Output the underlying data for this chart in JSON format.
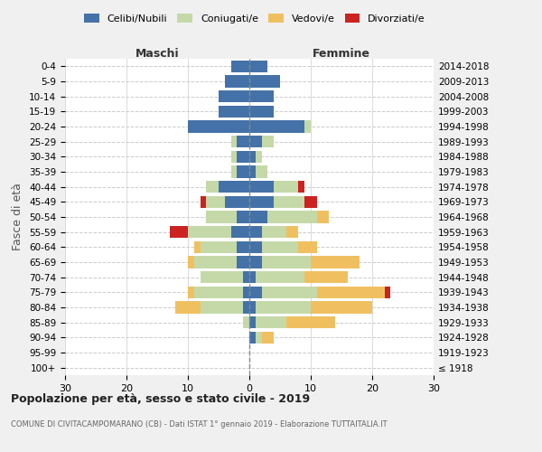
{
  "age_groups": [
    "100+",
    "95-99",
    "90-94",
    "85-89",
    "80-84",
    "75-79",
    "70-74",
    "65-69",
    "60-64",
    "55-59",
    "50-54",
    "45-49",
    "40-44",
    "35-39",
    "30-34",
    "25-29",
    "20-24",
    "15-19",
    "10-14",
    "5-9",
    "0-4"
  ],
  "birth_years": [
    "≤ 1918",
    "1919-1923",
    "1924-1928",
    "1929-1933",
    "1934-1938",
    "1939-1943",
    "1944-1948",
    "1949-1953",
    "1954-1958",
    "1959-1963",
    "1964-1968",
    "1969-1973",
    "1974-1978",
    "1979-1983",
    "1984-1988",
    "1989-1993",
    "1994-1998",
    "1999-2003",
    "2004-2008",
    "2009-2013",
    "2014-2018"
  ],
  "colors": {
    "celibi": "#4472a8",
    "coniugati": "#c5d9a8",
    "vedovi": "#f0c060",
    "divorziati": "#cc2222"
  },
  "males": {
    "celibi": [
      0,
      0,
      0,
      0,
      1,
      1,
      1,
      2,
      2,
      3,
      2,
      4,
      5,
      2,
      2,
      2,
      10,
      5,
      5,
      4,
      3
    ],
    "coniugati": [
      0,
      0,
      0,
      1,
      7,
      8,
      7,
      7,
      6,
      7,
      5,
      3,
      2,
      1,
      1,
      1,
      0,
      0,
      0,
      0,
      0
    ],
    "vedovi": [
      0,
      0,
      0,
      0,
      4,
      1,
      0,
      1,
      1,
      0,
      0,
      0,
      0,
      0,
      0,
      0,
      0,
      0,
      0,
      0,
      0
    ],
    "divorziati": [
      0,
      0,
      0,
      0,
      0,
      0,
      0,
      0,
      0,
      3,
      0,
      1,
      0,
      0,
      0,
      0,
      0,
      0,
      0,
      0,
      0
    ]
  },
  "females": {
    "celibi": [
      0,
      0,
      1,
      1,
      1,
      2,
      1,
      2,
      2,
      2,
      3,
      4,
      4,
      1,
      1,
      2,
      9,
      4,
      4,
      5,
      3
    ],
    "coniugati": [
      0,
      0,
      1,
      5,
      9,
      9,
      8,
      8,
      6,
      4,
      8,
      5,
      4,
      2,
      1,
      2,
      1,
      0,
      0,
      0,
      0
    ],
    "vedovi": [
      0,
      0,
      2,
      8,
      10,
      11,
      7,
      8,
      3,
      2,
      2,
      0,
      0,
      0,
      0,
      0,
      0,
      0,
      0,
      0,
      0
    ],
    "divorziati": [
      0,
      0,
      0,
      0,
      0,
      1,
      0,
      0,
      0,
      0,
      0,
      2,
      1,
      0,
      0,
      0,
      0,
      0,
      0,
      0,
      0
    ]
  },
  "xlim": [
    -30,
    30
  ],
  "xticks": [
    -30,
    -20,
    -10,
    0,
    10,
    20,
    30
  ],
  "xtick_labels": [
    "30",
    "20",
    "10",
    "0",
    "10",
    "20",
    "30"
  ],
  "title": "Popolazione per età, sesso e stato civile - 2019",
  "subtitle": "COMUNE DI CIVITACAMPOMARANO (CB) - Dati ISTAT 1° gennaio 2019 - Elaborazione TUTTAITALIA.IT",
  "ylabel_left": "Fasce di età",
  "label_maschi": "Maschi",
  "label_femmine": "Femmine",
  "legend_labels": [
    "Celibi/Nubili",
    "Coniugati/e",
    "Vedovi/e",
    "Divorziati/e"
  ],
  "bg_color": "#f0f0f0",
  "plot_bg_color": "#ffffff"
}
